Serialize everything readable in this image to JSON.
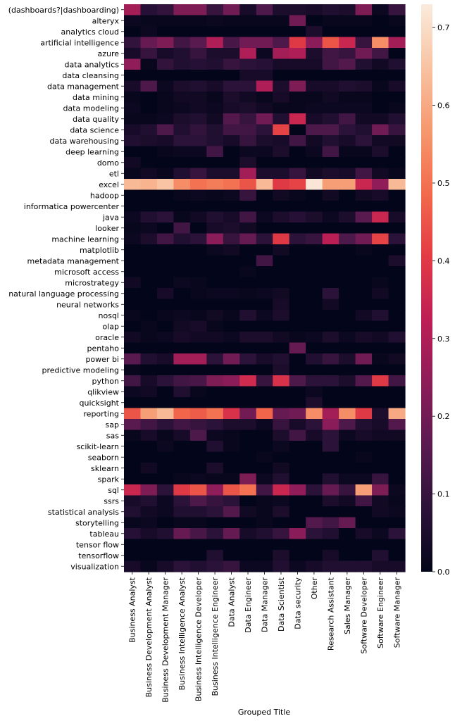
{
  "chart_data": {
    "type": "heatmap",
    "xlabel": "Grouped Title",
    "ylabel": "",
    "columns": [
      "Business Analyst",
      "Business Development Analyst",
      "Business Development Manager",
      "Business Intelligence Analyst",
      "Business Intelligence Developer",
      "Business Intelligence Engineer",
      "Data Analyst",
      "Data Engineer",
      "Data Manager",
      "Data Scientist",
      "Data security",
      "Other",
      "Research Assistant",
      "Sales Manager",
      "Software Developer",
      "Software Engineer",
      "Software Manager"
    ],
    "rows": [
      "(dashboards?|dashboarding)",
      "alteryx",
      "analytics cloud",
      "artificial intelligence",
      "azure",
      "data analytics",
      "data cleansing",
      "data management",
      "data mining",
      "data modeling",
      "data quality",
      "data science",
      "data warehousing",
      "deep learning",
      "domo",
      "etl",
      "excel",
      "hadoop",
      "informatica powercenter",
      "java",
      "looker",
      "machine learning",
      "matplotlib",
      "metadata management",
      "microsoft access",
      "microstrategy",
      "natural language processing",
      "neural networks",
      "nosql",
      "olap",
      "oracle",
      "pentaho",
      "power bi",
      "predictive modeling",
      "python",
      "qlikview",
      "quicksight",
      "reporting",
      "sap",
      "sas",
      "scikit-learn",
      "seaborn",
      "sklearn",
      "spark",
      "sql",
      "ssrs",
      "statistical analysis",
      "storytelling",
      "tableau",
      "tensor flow",
      "tensorflow",
      "visualization"
    ],
    "values": [
      [
        0.28,
        0.07,
        0.09,
        0.22,
        0.22,
        0.1,
        0.2,
        0.04,
        0.14,
        0.05,
        0.05,
        0.04,
        0.06,
        0.05,
        0.22,
        0.02,
        0.1
      ],
      [
        0.02,
        0.01,
        0.01,
        0.01,
        0.01,
        0.02,
        0.01,
        0.01,
        0.01,
        0.01,
        0.2,
        0.0,
        0.01,
        0.01,
        0.01,
        0.0,
        0.01
      ],
      [
        0.0,
        0.02,
        0.0,
        0.0,
        0.0,
        0.0,
        0.0,
        0.0,
        0.0,
        0.0,
        0.0,
        0.05,
        0.0,
        0.0,
        0.0,
        0.0,
        0.0
      ],
      [
        0.09,
        0.18,
        0.22,
        0.12,
        0.16,
        0.3,
        0.13,
        0.2,
        0.2,
        0.14,
        0.4,
        0.24,
        0.45,
        0.35,
        0.1,
        0.55,
        0.28
      ],
      [
        0.04,
        0.1,
        0.04,
        0.06,
        0.1,
        0.05,
        0.05,
        0.3,
        0.02,
        0.28,
        0.3,
        0.05,
        0.12,
        0.1,
        0.2,
        0.12,
        0.0
      ],
      [
        0.25,
        0.01,
        0.09,
        0.06,
        0.07,
        0.06,
        0.1,
        0.08,
        0.07,
        0.04,
        0.04,
        0.04,
        0.12,
        0.15,
        0.06,
        0.03,
        0.06
      ],
      [
        0.0,
        0.0,
        0.0,
        0.0,
        0.0,
        0.0,
        0.0,
        0.04,
        0.04,
        0.0,
        0.0,
        0.0,
        0.0,
        0.0,
        0.0,
        0.0,
        0.0
      ],
      [
        0.04,
        0.14,
        0.02,
        0.05,
        0.06,
        0.04,
        0.08,
        0.08,
        0.3,
        0.05,
        0.22,
        0.04,
        0.04,
        0.06,
        0.05,
        0.01,
        0.04
      ],
      [
        0.01,
        0.0,
        0.01,
        0.03,
        0.03,
        0.01,
        0.05,
        0.03,
        0.01,
        0.04,
        0.01,
        0.01,
        0.03,
        0.01,
        0.01,
        0.0,
        0.0
      ],
      [
        0.02,
        0.0,
        0.01,
        0.02,
        0.03,
        0.02,
        0.04,
        0.05,
        0.03,
        0.01,
        0.01,
        0.02,
        0.02,
        0.02,
        0.02,
        0.0,
        0.01
      ],
      [
        0.01,
        0.01,
        0.02,
        0.05,
        0.06,
        0.03,
        0.15,
        0.1,
        0.2,
        0.06,
        0.35,
        0.04,
        0.06,
        0.12,
        0.03,
        0.03,
        0.06
      ],
      [
        0.04,
        0.06,
        0.14,
        0.06,
        0.09,
        0.06,
        0.12,
        0.12,
        0.08,
        0.42,
        0.0,
        0.14,
        0.14,
        0.08,
        0.06,
        0.2,
        0.1
      ],
      [
        0.06,
        0.05,
        0.04,
        0.08,
        0.08,
        0.06,
        0.04,
        0.1,
        0.05,
        0.04,
        0.12,
        0.03,
        0.06,
        0.04,
        0.08,
        0.03,
        0.03
      ],
      [
        0.0,
        0.0,
        0.01,
        0.02,
        0.02,
        0.12,
        0.0,
        0.02,
        0.02,
        0.05,
        0.0,
        0.02,
        0.12,
        0.01,
        0.01,
        0.05,
        0.0
      ],
      [
        0.03,
        0.0,
        0.0,
        0.0,
        0.0,
        0.0,
        0.0,
        0.05,
        0.0,
        0.0,
        0.0,
        0.0,
        0.0,
        0.0,
        0.0,
        0.0,
        0.0
      ],
      [
        0.01,
        0.03,
        0.01,
        0.06,
        0.1,
        0.05,
        0.05,
        0.28,
        0.05,
        0.05,
        0.1,
        0.03,
        0.05,
        0.04,
        0.12,
        0.03,
        0.01
      ],
      [
        0.63,
        0.62,
        0.65,
        0.55,
        0.5,
        0.52,
        0.5,
        0.45,
        0.63,
        0.4,
        0.42,
        0.72,
        0.58,
        0.58,
        0.35,
        0.25,
        0.63
      ],
      [
        0.0,
        0.0,
        0.0,
        0.01,
        0.02,
        0.01,
        0.02,
        0.1,
        0.0,
        0.03,
        0.01,
        0.0,
        0.03,
        0.0,
        0.03,
        0.04,
        0.0
      ],
      [
        0.0,
        0.0,
        0.0,
        0.0,
        0.0,
        0.0,
        0.0,
        0.0,
        0.0,
        0.0,
        0.0,
        0.0,
        0.0,
        0.0,
        0.0,
        0.0,
        0.0
      ],
      [
        0.02,
        0.06,
        0.08,
        0.01,
        0.03,
        0.06,
        0.04,
        0.12,
        0.02,
        0.05,
        0.07,
        0.05,
        0.02,
        0.05,
        0.16,
        0.35,
        0.04
      ],
      [
        0.01,
        0.02,
        0.0,
        0.12,
        0.0,
        0.04,
        0.05,
        0.03,
        0.0,
        0.0,
        0.0,
        0.0,
        0.0,
        0.0,
        0.0,
        0.0,
        0.0
      ],
      [
        0.02,
        0.05,
        0.12,
        0.06,
        0.08,
        0.24,
        0.1,
        0.18,
        0.08,
        0.4,
        0.08,
        0.1,
        0.32,
        0.14,
        0.2,
        0.42,
        0.08
      ],
      [
        0.0,
        0.0,
        0.0,
        0.0,
        0.0,
        0.02,
        0.03,
        0.0,
        0.0,
        0.03,
        0.0,
        0.0,
        0.0,
        0.0,
        0.01,
        0.0,
        0.0
      ],
      [
        0.0,
        0.0,
        0.0,
        0.0,
        0.0,
        0.0,
        0.0,
        0.0,
        0.12,
        0.0,
        0.0,
        0.0,
        0.0,
        0.0,
        0.0,
        0.0,
        0.05
      ],
      [
        0.0,
        0.0,
        0.0,
        0.0,
        0.0,
        0.0,
        0.0,
        0.01,
        0.0,
        0.0,
        0.0,
        0.0,
        0.0,
        0.0,
        0.0,
        0.0,
        0.0
      ],
      [
        0.03,
        0.0,
        0.0,
        0.02,
        0.01,
        0.0,
        0.0,
        0.0,
        0.0,
        0.0,
        0.0,
        0.0,
        0.0,
        0.0,
        0.0,
        0.01,
        0.0
      ],
      [
        0.0,
        0.0,
        0.04,
        0.0,
        0.01,
        0.02,
        0.02,
        0.01,
        0.02,
        0.03,
        0.0,
        0.0,
        0.08,
        0.0,
        0.0,
        0.03,
        0.0
      ],
      [
        0.0,
        0.0,
        0.0,
        0.0,
        0.0,
        0.0,
        0.0,
        0.0,
        0.0,
        0.04,
        0.0,
        0.0,
        0.03,
        0.0,
        0.0,
        0.0,
        0.0
      ],
      [
        0.01,
        0.0,
        0.01,
        0.02,
        0.01,
        0.03,
        0.01,
        0.06,
        0.02,
        0.05,
        0.0,
        0.0,
        0.0,
        0.0,
        0.03,
        0.06,
        0.0
      ],
      [
        0.0,
        0.01,
        0.0,
        0.03,
        0.04,
        0.01,
        0.0,
        0.0,
        0.0,
        0.0,
        0.0,
        0.0,
        0.0,
        0.0,
        0.0,
        0.0,
        0.0
      ],
      [
        0.03,
        0.01,
        0.02,
        0.04,
        0.03,
        0.03,
        0.02,
        0.05,
        0.05,
        0.03,
        0.01,
        0.02,
        0.05,
        0.02,
        0.04,
        0.03,
        0.06
      ],
      [
        0.0,
        0.0,
        0.0,
        0.0,
        0.0,
        0.0,
        0.0,
        0.0,
        0.0,
        0.0,
        0.18,
        0.0,
        0.0,
        0.0,
        0.0,
        0.0,
        0.0
      ],
      [
        0.16,
        0.06,
        0.04,
        0.28,
        0.28,
        0.08,
        0.2,
        0.08,
        0.04,
        0.06,
        0.0,
        0.06,
        0.1,
        0.05,
        0.2,
        0.01,
        0.03
      ],
      [
        0.01,
        0.0,
        0.0,
        0.0,
        0.0,
        0.0,
        0.0,
        0.0,
        0.0,
        0.05,
        0.0,
        0.0,
        0.0,
        0.0,
        0.0,
        0.0,
        0.0
      ],
      [
        0.12,
        0.04,
        0.08,
        0.12,
        0.13,
        0.22,
        0.24,
        0.36,
        0.1,
        0.38,
        0.14,
        0.08,
        0.08,
        0.05,
        0.15,
        0.4,
        0.12
      ],
      [
        0.02,
        0.03,
        0.0,
        0.06,
        0.01,
        0.0,
        0.0,
        0.0,
        0.0,
        0.0,
        0.0,
        0.02,
        0.0,
        0.0,
        0.0,
        0.0,
        0.0
      ],
      [
        0.0,
        0.0,
        0.0,
        0.0,
        0.0,
        0.0,
        0.0,
        0.0,
        0.0,
        0.0,
        0.0,
        0.05,
        0.0,
        0.0,
        0.0,
        0.0,
        0.0
      ],
      [
        0.45,
        0.58,
        0.63,
        0.48,
        0.46,
        0.5,
        0.38,
        0.2,
        0.48,
        0.18,
        0.2,
        0.55,
        0.28,
        0.55,
        0.4,
        0.05,
        0.6
      ],
      [
        0.16,
        0.12,
        0.08,
        0.12,
        0.1,
        0.08,
        0.05,
        0.05,
        0.02,
        0.1,
        0.04,
        0.08,
        0.24,
        0.14,
        0.06,
        0.04,
        0.15
      ],
      [
        0.01,
        0.04,
        0.01,
        0.04,
        0.14,
        0.02,
        0.01,
        0.0,
        0.0,
        0.05,
        0.12,
        0.04,
        0.08,
        0.02,
        0.04,
        0.03,
        0.03
      ],
      [
        0.0,
        0.0,
        0.02,
        0.0,
        0.0,
        0.06,
        0.01,
        0.0,
        0.0,
        0.02,
        0.0,
        0.0,
        0.08,
        0.0,
        0.0,
        0.0,
        0.0
      ],
      [
        0.0,
        0.0,
        0.0,
        0.0,
        0.0,
        0.0,
        0.0,
        0.0,
        0.01,
        0.0,
        0.0,
        0.0,
        0.0,
        0.0,
        0.01,
        0.0,
        0.0
      ],
      [
        0.0,
        0.03,
        0.0,
        0.0,
        0.0,
        0.05,
        0.0,
        0.0,
        0.0,
        0.03,
        0.0,
        0.0,
        0.0,
        0.0,
        0.0,
        0.0,
        0.0
      ],
      [
        0.0,
        0.0,
        0.0,
        0.01,
        0.02,
        0.01,
        0.01,
        0.22,
        0.02,
        0.06,
        0.0,
        0.0,
        0.06,
        0.02,
        0.02,
        0.1,
        0.0
      ],
      [
        0.35,
        0.22,
        0.08,
        0.4,
        0.45,
        0.25,
        0.45,
        0.5,
        0.12,
        0.35,
        0.25,
        0.08,
        0.18,
        0.1,
        0.58,
        0.22,
        0.02
      ],
      [
        0.04,
        0.06,
        0.02,
        0.08,
        0.14,
        0.1,
        0.08,
        0.0,
        0.01,
        0.02,
        0.0,
        0.0,
        0.05,
        0.03,
        0.12,
        0.03,
        0.01
      ],
      [
        0.06,
        0.03,
        0.02,
        0.06,
        0.06,
        0.08,
        0.15,
        0.03,
        0.01,
        0.05,
        0.0,
        0.0,
        0.0,
        0.0,
        0.0,
        0.03,
        0.02
      ],
      [
        0.01,
        0.02,
        0.0,
        0.01,
        0.01,
        0.0,
        0.0,
        0.0,
        0.01,
        0.0,
        0.0,
        0.15,
        0.12,
        0.18,
        0.0,
        0.0,
        0.0
      ],
      [
        0.07,
        0.04,
        0.06,
        0.18,
        0.13,
        0.08,
        0.18,
        0.04,
        0.06,
        0.1,
        0.24,
        0.08,
        0.06,
        0.0,
        0.04,
        0.02,
        0.08
      ],
      [
        0.0,
        0.0,
        0.0,
        0.0,
        0.0,
        0.0,
        0.0,
        0.0,
        0.0,
        0.0,
        0.0,
        0.0,
        0.0,
        0.0,
        0.0,
        0.0,
        0.0
      ],
      [
        0.0,
        0.0,
        0.0,
        0.0,
        0.0,
        0.06,
        0.0,
        0.0,
        0.0,
        0.05,
        0.0,
        0.0,
        0.04,
        0.0,
        0.0,
        0.06,
        0.0
      ],
      [
        0.04,
        0.01,
        0.04,
        0.08,
        0.06,
        0.08,
        0.1,
        0.02,
        0.02,
        0.06,
        0.02,
        0.04,
        0.06,
        0.06,
        0.06,
        0.04,
        0.04
      ]
    ],
    "vmin": 0.0,
    "vmax": 0.73,
    "colorbar": {
      "colormap": "rocket",
      "ticks": [
        0.0,
        0.1,
        0.2,
        0.3,
        0.4,
        0.5,
        0.6,
        0.7
      ],
      "tick_labels": [
        "0.0",
        "0.1",
        "0.2",
        "0.3",
        "0.4",
        "0.5",
        "0.6",
        "0.7"
      ],
      "stops": [
        "#03051a",
        "#2c1239",
        "#5a1a50",
        "#8c1d59",
        "#be1e55",
        "#e33b45",
        "#f26a4b",
        "#f6986e",
        "#f8c3a2",
        "#faebdd"
      ]
    }
  }
}
